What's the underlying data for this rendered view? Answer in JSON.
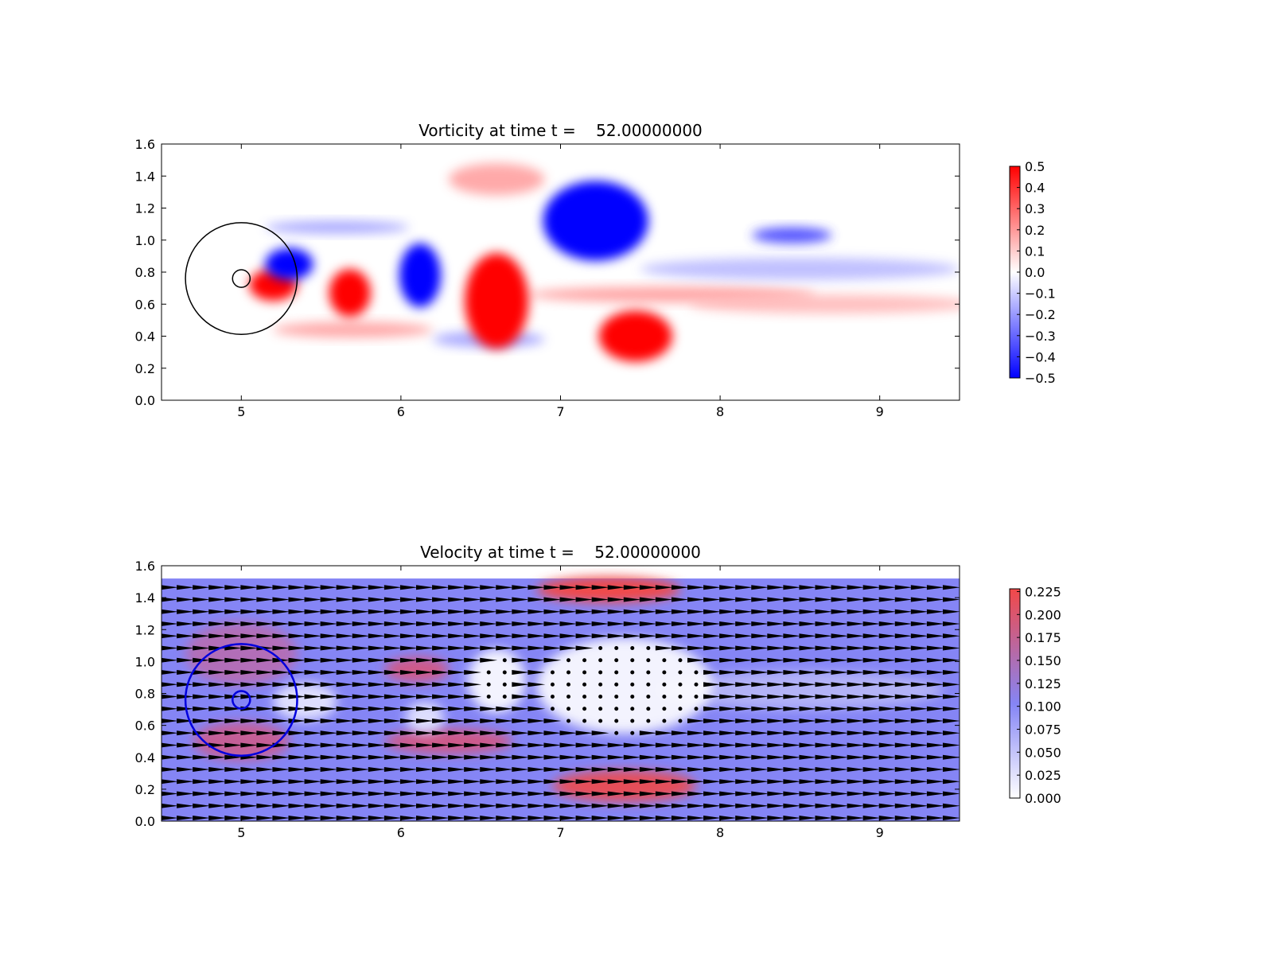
{
  "chart_data": [
    {
      "type": "heatmap",
      "title": "Vorticity at time t =    52.00000000",
      "xlim": [
        4.5,
        9.5
      ],
      "ylim": [
        0,
        1.6
      ],
      "xticks": [
        5,
        6,
        7,
        8,
        9
      ],
      "yticks": [
        {
          "value": 0,
          "label": "0.0"
        },
        0.2,
        0.4,
        0.6,
        0.8,
        {
          "value": 1,
          "label": "1.0"
        },
        1.2,
        1.4,
        1.6
      ],
      "colormap": "bwr",
      "clim": [
        -0.5,
        0.5
      ],
      "cticks": [
        {
          "value": -0.5,
          "label": "−0.5"
        },
        {
          "value": -0.4,
          "label": "−0.4"
        },
        {
          "value": -0.3,
          "label": "−0.3"
        },
        {
          "value": -0.2,
          "label": "−0.2"
        },
        {
          "value": -0.1,
          "label": "−0.1"
        },
        {
          "value": 0,
          "label": "0.0"
        },
        0.1,
        0.2,
        0.3,
        0.4,
        0.5
      ]
    },
    {
      "type": "quiver",
      "title": "Velocity at time t =    52.00000000",
      "xlim": [
        4.5,
        9.5
      ],
      "ylim": [
        0,
        1.6
      ],
      "xticks": [
        5,
        6,
        7,
        8,
        9
      ],
      "yticks": [
        {
          "value": 0,
          "label": "0.0"
        },
        0.2,
        0.4,
        0.6,
        0.8,
        {
          "value": 1,
          "label": "1.0"
        },
        1.2,
        1.4,
        1.6
      ],
      "colormap": "white-blue-red",
      "clim": [
        0,
        0.228
      ],
      "cticks": [
        {
          "value": 0,
          "label": "0.000"
        },
        0.025,
        {
          "value": 0.05,
          "label": "0.050"
        },
        0.075,
        {
          "value": 0.1,
          "label": "0.100"
        },
        0.125,
        {
          "value": 0.15,
          "label": "0.150"
        },
        0.175,
        {
          "value": 0.2,
          "label": "0.200"
        },
        0.225
      ]
    }
  ]
}
